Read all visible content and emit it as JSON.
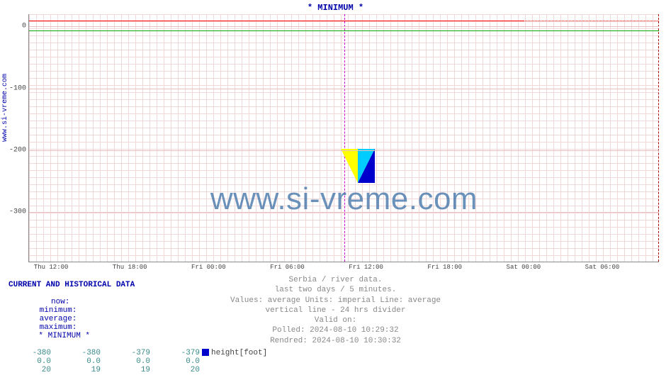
{
  "chart": {
    "title": "* MINIMUM *",
    "ylabel": "www.si-vreme.com",
    "background_color": "#ffffff",
    "grid_color": "#f0d8d8",
    "axis_color": "#888888",
    "ylim": [
      -380,
      20
    ],
    "yticks": [
      {
        "value": 0,
        "label": "0",
        "pct": 5.0
      },
      {
        "value": -100,
        "label": "-100",
        "pct": 30.0
      },
      {
        "value": -200,
        "label": "-200",
        "pct": 55.0
      },
      {
        "value": -300,
        "label": "-300",
        "pct": 80.0
      }
    ],
    "xticks": [
      {
        "label": "Thu 12:00",
        "pct": 3.5
      },
      {
        "label": "Thu 18:00",
        "pct": 16.0
      },
      {
        "label": "Fri 00:00",
        "pct": 28.5
      },
      {
        "label": "Fri 06:00",
        "pct": 41.0
      },
      {
        "label": "Fri 12:00",
        "pct": 53.5
      },
      {
        "label": "Fri 18:00",
        "pct": 66.0
      },
      {
        "label": "Sat 00:00",
        "pct": 78.5
      },
      {
        "label": "Sat 06:00",
        "pct": 91.0
      }
    ],
    "divider_pct": 50.0,
    "series": {
      "green": {
        "color": "#00aa00",
        "y_pct": 6.5
      },
      "red_solid": {
        "color": "#ff0000",
        "y_pct": 2.5,
        "from_pct": 0,
        "to_pct": 78.5
      },
      "red_dash": {
        "color": "#ff0000",
        "y_pct": 2.5,
        "from_pct": 50.0,
        "to_pct": 100
      }
    },
    "watermark": "www.si-vreme.com",
    "watermark_color": "#3a6ea5",
    "logo_colors": {
      "yellow": "#ffff00",
      "cyan": "#00ccff",
      "blue": "#0000cc"
    }
  },
  "caption": {
    "line1": "Serbia / river data.",
    "line2": "last two days / 5 minutes.",
    "line3": "Values: average  Units: imperial  Line: average",
    "line4": "vertical line - 24 hrs  divider",
    "line5": "Valid on:",
    "line6": "Polled: 2024-08-10 10:29:32",
    "line7": "Rendred: 2024-08-10 10:30:32"
  },
  "table": {
    "header": "CURRENT AND HISTORICAL DATA",
    "cols": {
      "now": "now:",
      "min": "minimum:",
      "avg": "average:",
      "max": "maximum:",
      "series": "* MINIMUM *"
    },
    "rows": [
      {
        "now": "-380",
        "min": "-380",
        "avg": "-379",
        "max": "-379",
        "series": "height[foot]",
        "swatch": "#0000cc"
      },
      {
        "now": "0.0",
        "min": "0.0",
        "avg": "0.0",
        "max": "0.0",
        "series": "",
        "swatch": ""
      },
      {
        "now": "20",
        "min": "19",
        "avg": "19",
        "max": "20",
        "series": "",
        "swatch": ""
      }
    ]
  }
}
